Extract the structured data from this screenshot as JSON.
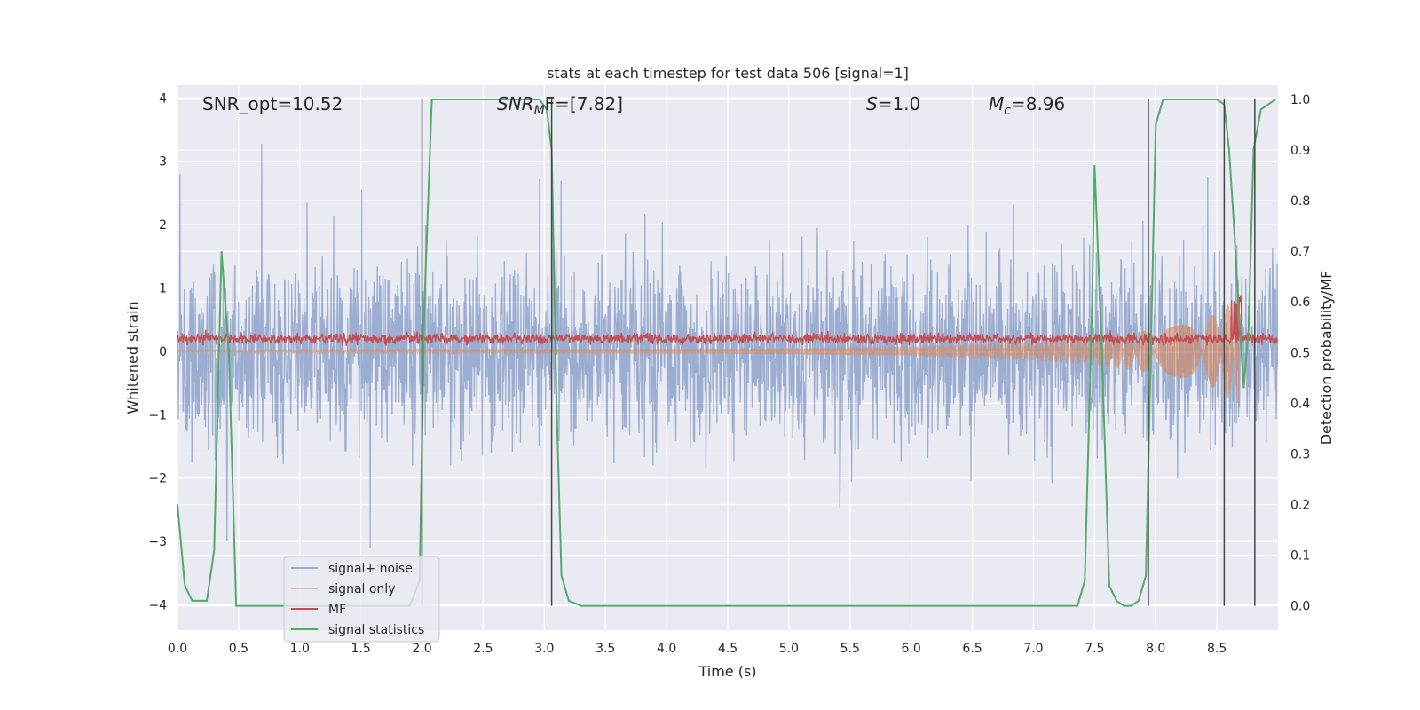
{
  "chart_data": {
    "type": "line",
    "title": "stats at each timestep for test data 506 [signal=1]",
    "xlabel": "Time (s)",
    "ylabel": "Whitened strain",
    "y2label": "Detection probability/MF",
    "xlim": [
      0.0,
      9.0
    ],
    "ylim": [
      -4.4,
      4.2
    ],
    "y2lim": [
      -0.048,
      1.028
    ],
    "xticks": [
      "0.0",
      "0.5",
      "1.0",
      "1.5",
      "2.0",
      "2.5",
      "3.0",
      "3.5",
      "4.0",
      "4.5",
      "5.0",
      "5.5",
      "6.0",
      "6.5",
      "7.0",
      "7.5",
      "8.0",
      "8.5"
    ],
    "yticks": [
      "4",
      "3",
      "2",
      "1",
      "0",
      "−1",
      "−2",
      "−3",
      "−4"
    ],
    "y2ticks": [
      "1.0",
      "0.9",
      "0.8",
      "0.7",
      "0.6",
      "0.5",
      "0.4",
      "0.3",
      "0.2",
      "0.1",
      "0.0"
    ],
    "grid": true,
    "legend_placement": "lower-left",
    "annotations": {
      "snr_opt": "SNR_opt=10.52",
      "snr_mf_main": "SNR",
      "snr_mf_sub": "M",
      "snr_mf_rest": "F=[7.82]",
      "s_main": "S",
      "s_rest": "=1.0",
      "mc_main": "M",
      "mc_sub": "c",
      "mc_rest": "=8.96"
    },
    "series": [
      {
        "name": "signal+ noise",
        "color": "#4c72b0",
        "description_values": "noise band approximately within ±2.5, spikes to ±3.8"
      },
      {
        "name": "signal only",
        "color": "#dd8452",
        "envelope_t": [
          0,
          4.5,
          6.0,
          7.0,
          7.5,
          8.0,
          8.3,
          8.5,
          8.6,
          8.68
        ],
        "envelope_amp": [
          0.02,
          0.04,
          0.08,
          0.15,
          0.22,
          0.35,
          0.45,
          0.6,
          0.75,
          0.9
        ]
      },
      {
        "name": "MF",
        "color": "#c44e52",
        "mean": 0.2,
        "spread": 0.12
      },
      {
        "name": "signal statistics",
        "color": "#55a868",
        "x": [
          0.0,
          0.06,
          0.12,
          0.18,
          0.24,
          0.3,
          0.36,
          0.42,
          0.48,
          0.54,
          0.6,
          0.7,
          0.8,
          1.0,
          1.5,
          1.9,
          1.98,
          2.02,
          2.08,
          2.14,
          2.3,
          2.6,
          2.9,
          2.96,
          3.02,
          3.06,
          3.1,
          3.14,
          3.2,
          3.3,
          3.5,
          4.0,
          5.0,
          6.0,
          7.0,
          7.3,
          7.36,
          7.42,
          7.48,
          7.5,
          7.56,
          7.62,
          7.68,
          7.74,
          7.8,
          7.86,
          7.92,
          7.96,
          8.0,
          8.06,
          8.12,
          8.2,
          8.3,
          8.4,
          8.5,
          8.56,
          8.6,
          8.64,
          8.68,
          8.72,
          8.76,
          8.8,
          8.86,
          8.92,
          8.98
        ],
        "y": [
          0.2,
          0.04,
          0.01,
          0.01,
          0.01,
          0.11,
          0.7,
          0.5,
          0.0,
          0.0,
          0.0,
          0.0,
          0.0,
          0.0,
          0.0,
          0.0,
          0.05,
          0.6,
          1.0,
          1.0,
          1.0,
          1.0,
          1.0,
          1.0,
          0.98,
          0.9,
          0.4,
          0.06,
          0.01,
          0.0,
          0.0,
          0.0,
          0.0,
          0.0,
          0.0,
          0.0,
          0.0,
          0.05,
          0.6,
          0.87,
          0.5,
          0.04,
          0.01,
          0.0,
          0.0,
          0.01,
          0.06,
          0.5,
          0.95,
          1.0,
          1.0,
          1.0,
          1.0,
          1.0,
          1.0,
          0.99,
          0.9,
          0.75,
          0.58,
          0.43,
          0.55,
          0.9,
          0.98,
          0.99,
          1.0
        ]
      }
    ],
    "vlines_t": [
      2.0,
      3.06,
      7.94,
      8.56,
      8.81
    ],
    "legend": [
      "signal+ noise",
      "signal only",
      "MF",
      "signal statistics"
    ]
  }
}
